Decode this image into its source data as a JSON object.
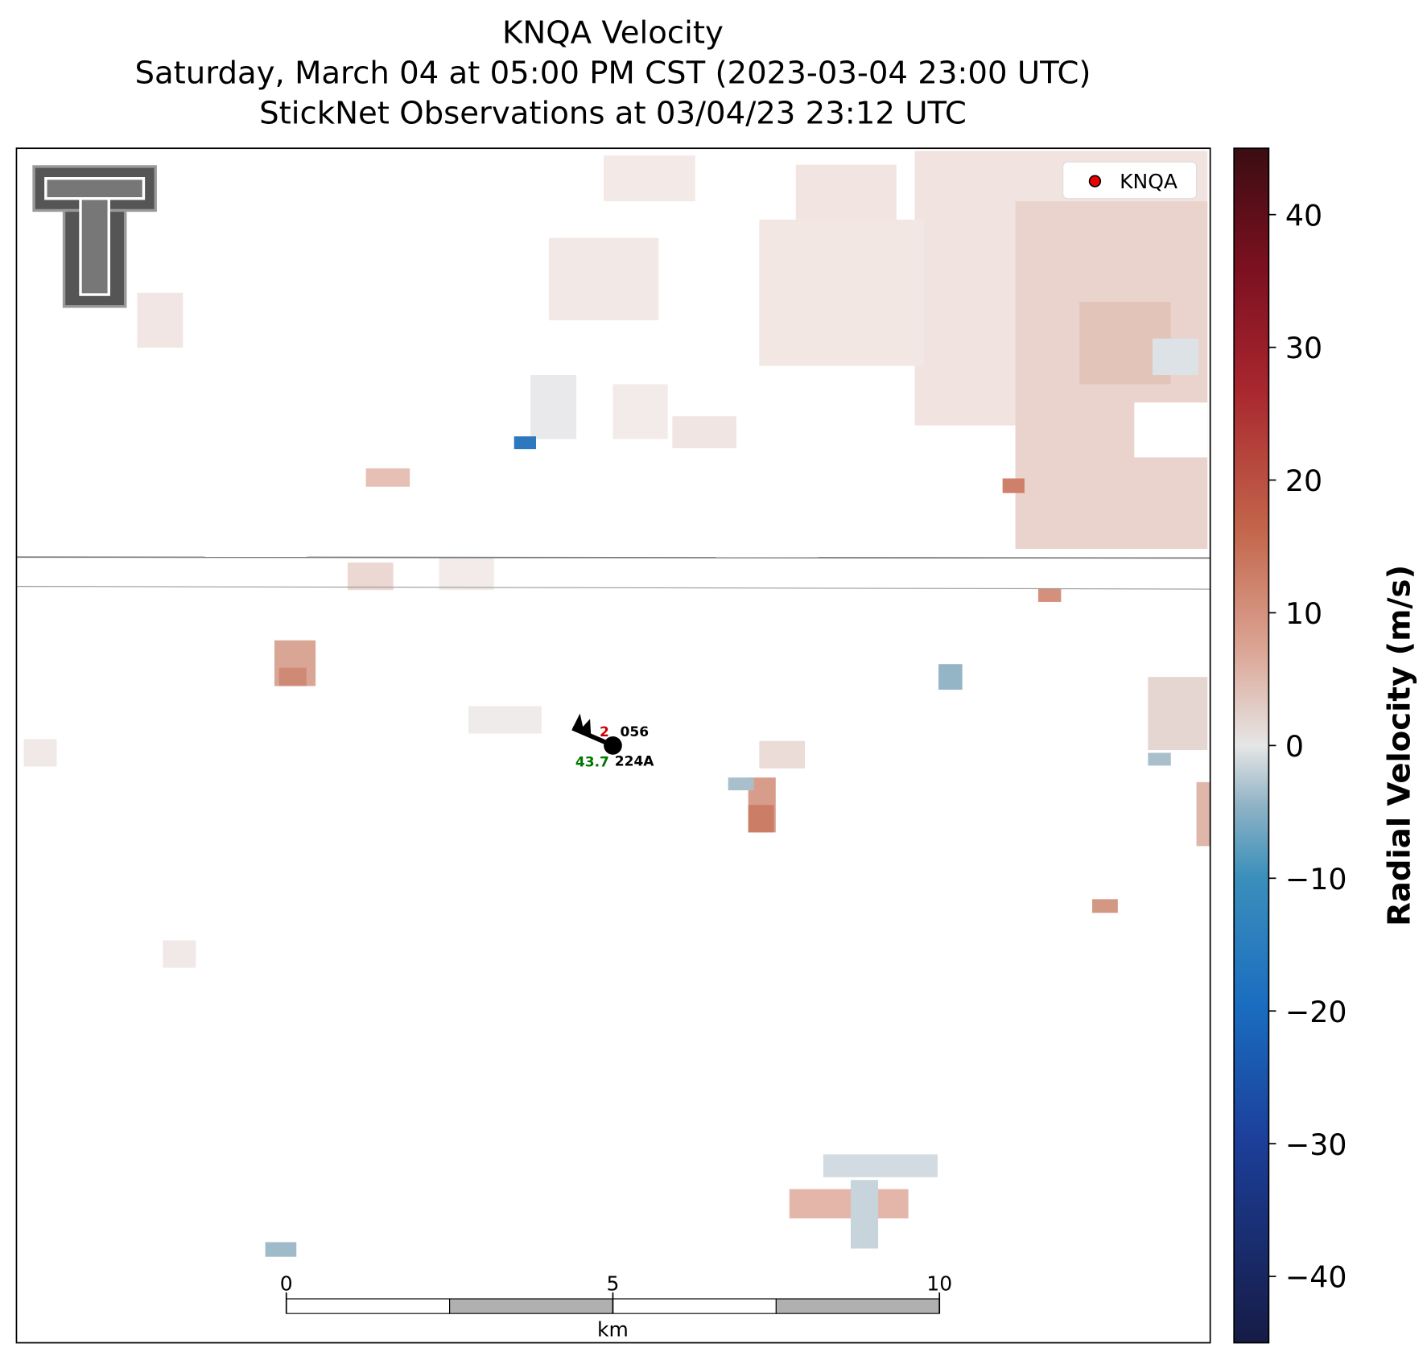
{
  "header": {
    "title": [
      "KNQA Velocity",
      "Saturday, March 04 at 05:00 PM CST (2023-03-04 23:00 UTC)",
      "StickNet Observations at 03/04/23 23:12 UTC"
    ]
  },
  "legend": {
    "label": "KNQA"
  },
  "colorbar": {
    "label": "Radial Velocity (m/s)",
    "lim": [
      -45,
      45
    ],
    "ticks": [
      {
        "value": -40,
        "label": "−40"
      },
      {
        "value": -30,
        "label": "−30"
      },
      {
        "value": -20,
        "label": "−20"
      },
      {
        "value": -10,
        "label": "−10"
      },
      0,
      10,
      20,
      30,
      40
    ]
  },
  "scale_bar": {
    "lim": [
      0,
      10
    ],
    "ticks": [
      0,
      5,
      10
    ],
    "unit": "km"
  },
  "station": {
    "temperature": "2",
    "pressure": "056",
    "dewpoint": "43.7",
    "id": "224A"
  }
}
